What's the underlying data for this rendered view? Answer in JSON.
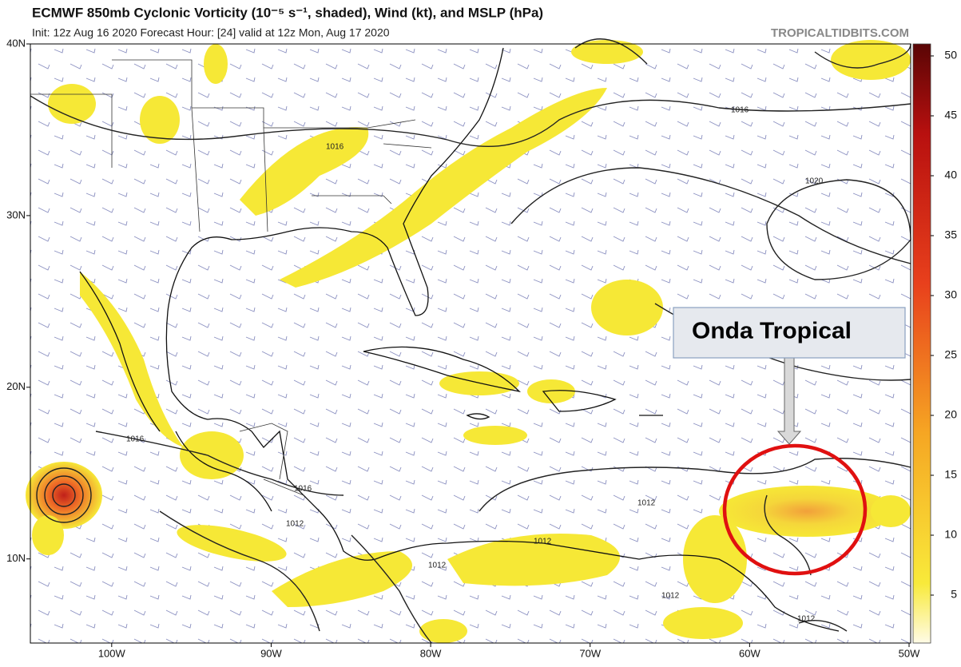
{
  "header": {
    "title": "ECMWF 850mb Cyclonic Vorticity (10⁻⁵ s⁻¹, shaded), Wind (kt), and MSLP (hPa)",
    "subtitle": "Init: 12z Aug 16 2020   Forecast Hour: [24]   valid at 12z Mon, Aug 17 2020",
    "source": "TROPICALTIDBITS.COM"
  },
  "map": {
    "xlim": [
      -105.1,
      -49.9
    ],
    "ylim": [
      5.1,
      40
    ],
    "xticks": [
      {
        "value": -100,
        "label": "100W"
      },
      {
        "value": -90,
        "label": "90W"
      },
      {
        "value": -80,
        "label": "80W"
      },
      {
        "value": -70,
        "label": "70W"
      },
      {
        "value": -60,
        "label": "60W"
      },
      {
        "value": -50,
        "label": "50W"
      }
    ],
    "yticks": [
      {
        "value": 10,
        "label": "10N"
      },
      {
        "value": 20,
        "label": "20N"
      },
      {
        "value": 30,
        "label": "30N"
      },
      {
        "value": 40,
        "label": "40N"
      }
    ],
    "contour_labels": [
      "1016",
      "1016",
      "1020",
      "1016",
      "1016",
      "1012",
      "1012",
      "1012",
      "1012",
      "1012",
      "1012"
    ]
  },
  "colorbar": {
    "clim": [
      1,
      51
    ],
    "ticks": [
      5,
      10,
      15,
      20,
      25,
      30,
      35,
      40,
      45,
      50
    ]
  },
  "annotation": {
    "text": "Onda Tropical"
  }
}
